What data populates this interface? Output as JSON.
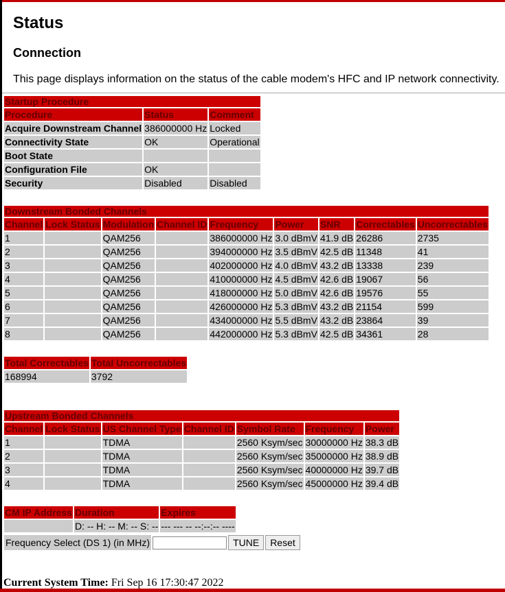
{
  "page": {
    "title": "Status",
    "subtitle": "Connection",
    "intro": "This page displays information on the status of the cable modem's HFC and IP network connectivity."
  },
  "colors": {
    "header_bg": "#cc0000",
    "header_text": "#660000",
    "row_bg": "#cccccc",
    "accent_bar": "#c00000"
  },
  "startup": {
    "title": "Startup Procedure",
    "headers": [
      "Procedure",
      "Status",
      "Comment"
    ],
    "rows": [
      [
        "Acquire Downstream Channel",
        "386000000 Hz",
        "Locked"
      ],
      [
        "Connectivity State",
        "OK",
        "Operational"
      ],
      [
        "Boot State",
        "",
        ""
      ],
      [
        "Configuration File",
        "OK",
        ""
      ],
      [
        "Security",
        "Disabled",
        "Disabled"
      ]
    ]
  },
  "downstream": {
    "title": "Downstream Bonded Channels",
    "headers": [
      "Channel",
      "Lock Status",
      "Modulation",
      "Channel ID",
      "Frequency",
      "Power",
      "SNR",
      "Correctables",
      "Uncorrectables"
    ],
    "rows": [
      [
        "1",
        "",
        "QAM256",
        "",
        "386000000 Hz",
        "3.0 dBmV",
        "41.9 dB",
        "26286",
        "2735"
      ],
      [
        "2",
        "",
        "QAM256",
        "",
        "394000000 Hz",
        "3.5 dBmV",
        "42.5 dB",
        "11348",
        "41"
      ],
      [
        "3",
        "",
        "QAM256",
        "",
        "402000000 Hz",
        "4.0 dBmV",
        "43.2 dB",
        "13338",
        "239"
      ],
      [
        "4",
        "",
        "QAM256",
        "",
        "410000000 Hz",
        "4.5 dBmV",
        "42.6 dB",
        "19067",
        "56"
      ],
      [
        "5",
        "",
        "QAM256",
        "",
        "418000000 Hz",
        "5.0 dBmV",
        "42.6 dB",
        "19576",
        "55"
      ],
      [
        "6",
        "",
        "QAM256",
        "",
        "426000000 Hz",
        "5.3 dBmV",
        "43.2 dB",
        "21154",
        "599"
      ],
      [
        "7",
        "",
        "QAM256",
        "",
        "434000000 Hz",
        "5.5 dBmV",
        "43.2 dB",
        "23864",
        "39"
      ],
      [
        "8",
        "",
        "QAM256",
        "",
        "442000000 Hz",
        "5.3 dBmV",
        "42.5 dB",
        "34361",
        "28"
      ]
    ]
  },
  "totals": {
    "headers": [
      "Total Correctables",
      "Total Uncorrectables"
    ],
    "rows": [
      [
        "168994",
        "3792"
      ]
    ]
  },
  "upstream": {
    "title": "Upstream Bonded Channels",
    "headers": [
      "Channel",
      "Lock Status",
      "US Channel Type",
      "Channel ID",
      "Symbol Rate",
      "Frequency",
      "Power"
    ],
    "rows": [
      [
        "1",
        "",
        "TDMA",
        "",
        "2560 Ksym/sec",
        "30000000 Hz",
        "38.3 dB"
      ],
      [
        "2",
        "",
        "TDMA",
        "",
        "2560 Ksym/sec",
        "35000000 Hz",
        "38.9 dB"
      ],
      [
        "3",
        "",
        "TDMA",
        "",
        "2560 Ksym/sec",
        "40000000 Hz",
        "39.7 dB"
      ],
      [
        "4",
        "",
        "TDMA",
        "",
        "2560 Ksym/sec",
        "45000000 Hz",
        "39.4 dB"
      ]
    ]
  },
  "ip": {
    "headers": [
      "CM IP Address",
      "Duration",
      "Expires"
    ],
    "rows": [
      [
        "",
        "D: -- H: -- M: -- S: --",
        "--- --- -- --:--:-- ----"
      ]
    ]
  },
  "freq_select": {
    "label": "Frequency Select (DS 1) (in MHz)",
    "value": "",
    "tune_label": "TUNE",
    "reset_label": "Reset"
  },
  "footer": {
    "time_label": "Current System Time:",
    "time_value": "Fri Sep 16 17:30:47 2022"
  }
}
